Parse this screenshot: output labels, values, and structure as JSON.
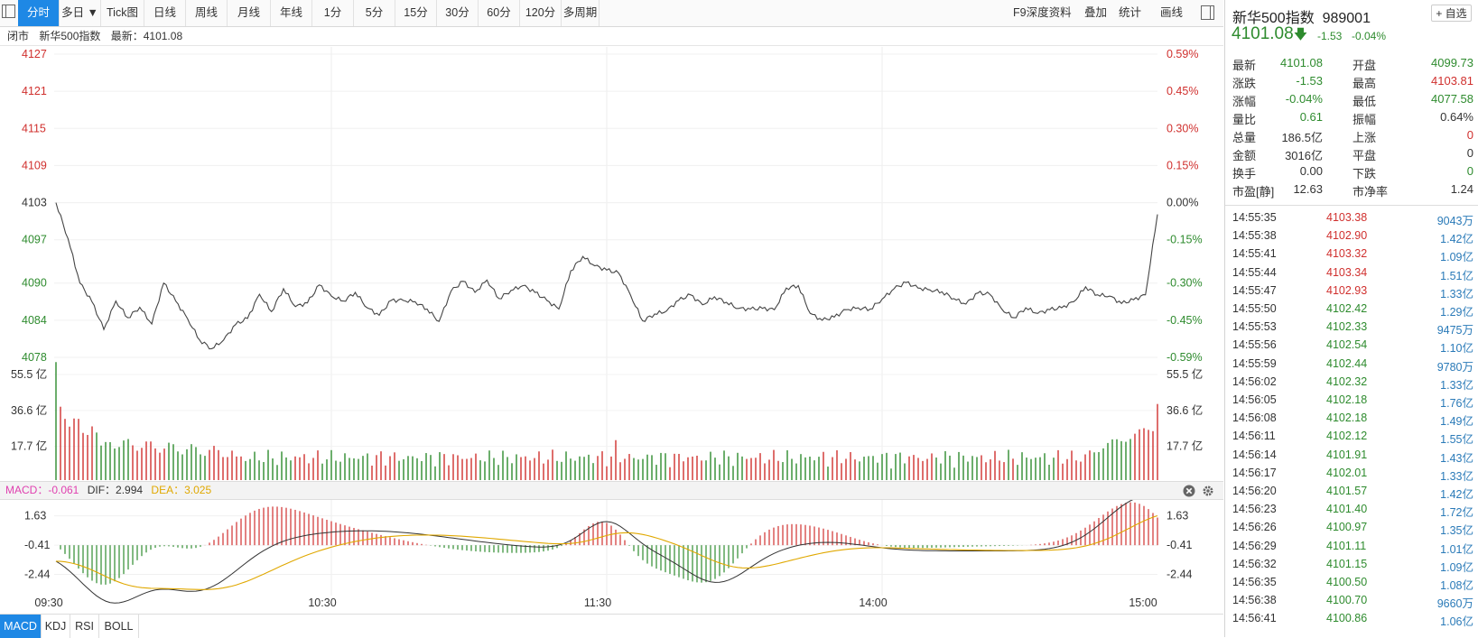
{
  "toolbar": {
    "left_buttons": [
      {
        "label": "分时",
        "active": true
      },
      {
        "label": "多日 ▼",
        "active": false
      },
      {
        "label": "Tick图",
        "active": false
      },
      {
        "label": "日线",
        "active": false
      },
      {
        "label": "周线",
        "active": false
      },
      {
        "label": "月线",
        "active": false
      },
      {
        "label": "年线",
        "active": false
      },
      {
        "label": "1分",
        "active": false
      },
      {
        "label": "5分",
        "active": false
      },
      {
        "label": "15分",
        "active": false
      },
      {
        "label": "30分",
        "active": false
      },
      {
        "label": "60分",
        "active": false
      },
      {
        "label": "120分",
        "active": false
      },
      {
        "label": "多周期",
        "active": false
      }
    ],
    "right_buttons": [
      "F9深度资料",
      "叠加",
      "统计",
      "画线"
    ]
  },
  "infobar": {
    "status": "闭市",
    "name": "新华500指数",
    "latest": "最新：4101.08"
  },
  "price_axis": {
    "left": [
      "4127",
      "4121",
      "4115",
      "4109",
      "4103",
      "4097",
      "4090",
      "4084",
      "4078"
    ],
    "right": [
      "0.59%",
      "0.45%",
      "0.30%",
      "0.15%",
      "0.00%",
      "-0.15%",
      "-0.30%",
      "-0.45%",
      "-0.59%"
    ]
  },
  "volume_axis": [
    "55.5 亿",
    "36.6 亿",
    "17.7 亿"
  ],
  "macd_header": {
    "macd": "MACD：-0.061",
    "dif": "DIF：2.994",
    "dea": "DEA：3.025"
  },
  "macd_axis": [
    "1.63",
    "-0.41",
    "-2.44"
  ],
  "time_axis": [
    "09:30",
    "10:30",
    "11:30",
    "14:00",
    "15:00"
  ],
  "indicator_tabs": [
    {
      "label": "MACD",
      "active": true
    },
    {
      "label": "KDJ",
      "active": false
    },
    {
      "label": "RSI",
      "active": false
    },
    {
      "label": "BOLL",
      "active": false
    }
  ],
  "colors": {
    "up": "#d0302e",
    "down": "#2e8b2e",
    "accent": "#1e88e5",
    "dif": "#333333",
    "dea": "#e0a800",
    "macd_label": "#e040b0"
  },
  "chart_data": {
    "type": "line",
    "title": "",
    "xlabel": "",
    "ylabel": "",
    "x_range": [
      "09:30",
      "15:00"
    ],
    "ylim": [
      4078,
      4127
    ],
    "prev_close": 4103,
    "series": [
      {
        "values": [
          4103.0,
          4097.2,
          4090.0,
          4087.0,
          4082.5,
          4087.1,
          4084.4,
          4086.1,
          4083.4,
          4090.0,
          4087.1,
          4084.2,
          4080.8,
          4079.4,
          4080.8,
          4083.3,
          4084.3,
          4088.2,
          4085.4,
          4089.1,
          4086.2,
          4086.8,
          4089.7,
          4087.9,
          4087.1,
          4088.5,
          4086.0,
          4084.8,
          4087.2,
          4087.2,
          4087.0,
          4085.8,
          4083.8,
          4088.7,
          4090.3,
          4088.5,
          4090.5,
          4087.5,
          4088.8,
          4089.6,
          4088.5,
          4087.2,
          4085.8,
          4092.0,
          4094.3,
          4092.8,
          4092.1,
          4091.6,
          4088.0,
          4083.9,
          4085.0,
          4085.5,
          4087.2,
          4088.1,
          4086.5,
          4087.8,
          4086.9,
          4085.9,
          4085.8,
          4085.9,
          4085.7,
          4089.2,
          4089.6,
          4085.1,
          4084.0,
          4084.5,
          4085.7,
          4086.0,
          4085.8,
          4087.4,
          4089.1,
          4090.1,
          4089.2,
          4088.9,
          4088.6,
          4087.5,
          4086.6,
          4088.4,
          4088.2,
          4085.8,
          4084.4,
          4086.0,
          4085.1,
          4085.7,
          4086.0,
          4087.0,
          4089.4,
          4088.1,
          4087.9,
          4086.7,
          4087.3,
          4088.1,
          4101.1
        ]
      }
    ],
    "volume": {
      "unit": "亿",
      "max": 55.5
    },
    "macd": {
      "ylim": [
        -2.44,
        1.63
      ]
    }
  },
  "right_panel": {
    "title": "新华500指数  989001",
    "fav_label": "+ 自选",
    "price": "4101.08",
    "change": "-1.53",
    "change_pct": "-0.04%",
    "quote_rows": [
      {
        "l1": "最新",
        "v1": "4101.08",
        "c1": "green",
        "l2": "开盘",
        "v2": "4099.73",
        "c2": "green"
      },
      {
        "l1": "涨跌",
        "v1": "-1.53",
        "c1": "green",
        "l2": "最高",
        "v2": "4103.81",
        "c2": "red"
      },
      {
        "l1": "涨幅",
        "v1": "-0.04%",
        "c1": "green",
        "l2": "最低",
        "v2": "4077.58",
        "c2": "green"
      },
      {
        "l1": "量比",
        "v1": "0.61",
        "c1": "green",
        "l2": "振幅",
        "v2": "0.64%",
        "c2": "dark"
      },
      {
        "l1": "总量",
        "v1": "186.5亿",
        "c1": "dark",
        "l2": "上涨",
        "v2": "0",
        "c2": "red"
      },
      {
        "l1": "金额",
        "v1": "3016亿",
        "c1": "dark",
        "l2": "平盘",
        "v2": "0",
        "c2": "dark"
      },
      {
        "l1": "换手",
        "v1": "0.00",
        "c1": "dark",
        "l2": "下跌",
        "v2": "0",
        "c2": "green"
      },
      {
        "l1": "市盈[静]",
        "v1": "12.63",
        "c1": "dark",
        "l2": "市净率",
        "v2": "1.24",
        "c2": "dark"
      }
    ],
    "ticks": [
      {
        "t": "14:55:35",
        "p": "4103.38",
        "pc": "red",
        "v": "9043万"
      },
      {
        "t": "14:55:38",
        "p": "4102.90",
        "pc": "red",
        "v": "1.42亿"
      },
      {
        "t": "14:55:41",
        "p": "4103.32",
        "pc": "red",
        "v": "1.09亿"
      },
      {
        "t": "14:55:44",
        "p": "4103.34",
        "pc": "red",
        "v": "1.51亿"
      },
      {
        "t": "14:55:47",
        "p": "4102.93",
        "pc": "red",
        "v": "1.33亿"
      },
      {
        "t": "14:55:50",
        "p": "4102.42",
        "pc": "green",
        "v": "1.29亿"
      },
      {
        "t": "14:55:53",
        "p": "4102.33",
        "pc": "green",
        "v": "9475万"
      },
      {
        "t": "14:55:56",
        "p": "4102.54",
        "pc": "green",
        "v": "1.10亿"
      },
      {
        "t": "14:55:59",
        "p": "4102.44",
        "pc": "green",
        "v": "9780万"
      },
      {
        "t": "14:56:02",
        "p": "4102.32",
        "pc": "green",
        "v": "1.33亿"
      },
      {
        "t": "14:56:05",
        "p": "4102.18",
        "pc": "green",
        "v": "1.76亿"
      },
      {
        "t": "14:56:08",
        "p": "4102.18",
        "pc": "green",
        "v": "1.49亿"
      },
      {
        "t": "14:56:11",
        "p": "4102.12",
        "pc": "green",
        "v": "1.55亿"
      },
      {
        "t": "14:56:14",
        "p": "4101.91",
        "pc": "green",
        "v": "1.43亿"
      },
      {
        "t": "14:56:17",
        "p": "4102.01",
        "pc": "green",
        "v": "1.33亿"
      },
      {
        "t": "14:56:20",
        "p": "4101.57",
        "pc": "green",
        "v": "1.42亿"
      },
      {
        "t": "14:56:23",
        "p": "4101.40",
        "pc": "green",
        "v": "1.72亿"
      },
      {
        "t": "14:56:26",
        "p": "4100.97",
        "pc": "green",
        "v": "1.35亿"
      },
      {
        "t": "14:56:29",
        "p": "4101.11",
        "pc": "green",
        "v": "1.01亿"
      },
      {
        "t": "14:56:32",
        "p": "4101.15",
        "pc": "green",
        "v": "1.09亿"
      },
      {
        "t": "14:56:35",
        "p": "4100.50",
        "pc": "green",
        "v": "1.08亿"
      },
      {
        "t": "14:56:38",
        "p": "4100.70",
        "pc": "green",
        "v": "9660万"
      },
      {
        "t": "14:56:41",
        "p": "4100.86",
        "pc": "green",
        "v": "1.06亿"
      }
    ]
  }
}
